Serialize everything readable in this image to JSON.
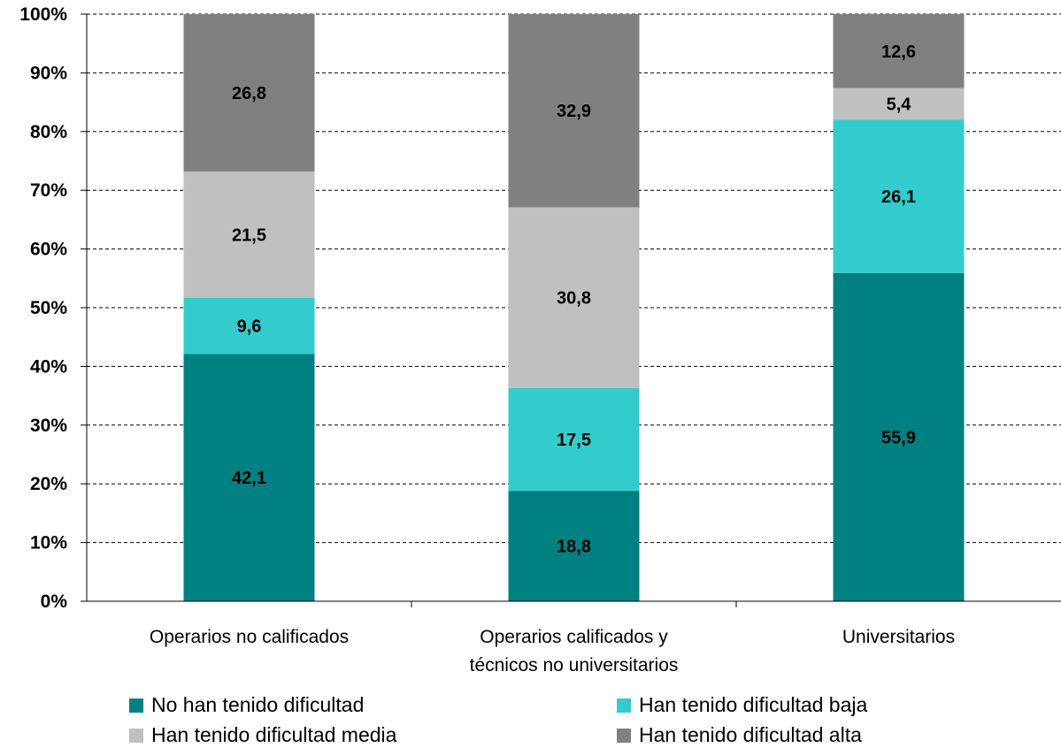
{
  "chart_data": {
    "type": "bar",
    "stacked": true,
    "categories": [
      [
        "Operarios no calificados"
      ],
      [
        "Operarios calificados y",
        "técnicos no universitarios"
      ],
      [
        "Universitarios"
      ]
    ],
    "series": [
      {
        "name": "No han tenido dificultad",
        "color": "#008080",
        "values": [
          42.1,
          18.8,
          55.9
        ]
      },
      {
        "name": "Han tenido dificultad baja",
        "color": "#33CCCC",
        "values": [
          9.6,
          17.5,
          26.1
        ]
      },
      {
        "name": "Han tenido dificultad media",
        "color": "#C0C0C0",
        "values": [
          21.5,
          30.8,
          5.4
        ]
      },
      {
        "name": "Han tenido dificultad alta",
        "color": "#808080",
        "values": [
          26.8,
          32.9,
          12.6
        ]
      }
    ],
    "data_labels": [
      [
        "42,1",
        "18,8",
        "55,9"
      ],
      [
        "9,6",
        "17,5",
        "26,1"
      ],
      [
        "21,5",
        "30,8",
        "5,4"
      ],
      [
        "26,8",
        "32,9",
        "12,6"
      ]
    ],
    "yticks": [
      "0%",
      "10%",
      "20%",
      "30%",
      "40%",
      "50%",
      "60%",
      "70%",
      "80%",
      "90%",
      "100%"
    ],
    "ylim": [
      0,
      100
    ],
    "grid": true,
    "legend_position": "bottom"
  }
}
